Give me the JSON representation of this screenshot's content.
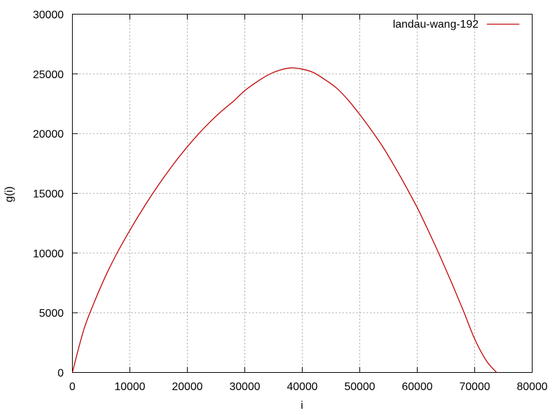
{
  "chart_data": {
    "type": "line",
    "title": "",
    "xlabel": "i",
    "ylabel": "g(i)",
    "xlim": [
      0,
      80000
    ],
    "ylim": [
      0,
      30000
    ],
    "xticks": [
      0,
      10000,
      20000,
      30000,
      40000,
      50000,
      60000,
      70000,
      80000
    ],
    "yticks": [
      0,
      5000,
      10000,
      15000,
      20000,
      25000,
      30000
    ],
    "grid": true,
    "legend_position": "top-right",
    "series": [
      {
        "name": "landau-wang-192",
        "color": "#c00000",
        "x": [
          0,
          2000,
          4000,
          6000,
          8000,
          10000,
          12000,
          14000,
          16000,
          18000,
          20000,
          22000,
          24000,
          26000,
          28000,
          30000,
          32000,
          34000,
          36000,
          38000,
          40000,
          42000,
          44000,
          46000,
          48000,
          50000,
          52000,
          54000,
          56000,
          58000,
          60000,
          62000,
          64000,
          66000,
          68000,
          70000,
          72000,
          73800
        ],
        "y": [
          0,
          3600,
          6100,
          8300,
          10200,
          11900,
          13500,
          15000,
          16400,
          17700,
          18900,
          20000,
          21000,
          21900,
          22700,
          23600,
          24300,
          24900,
          25300,
          25500,
          25400,
          25100,
          24500,
          23800,
          22800,
          21600,
          20300,
          18900,
          17300,
          15600,
          13800,
          11800,
          9700,
          7500,
          5200,
          2800,
          1000,
          0
        ]
      }
    ]
  }
}
